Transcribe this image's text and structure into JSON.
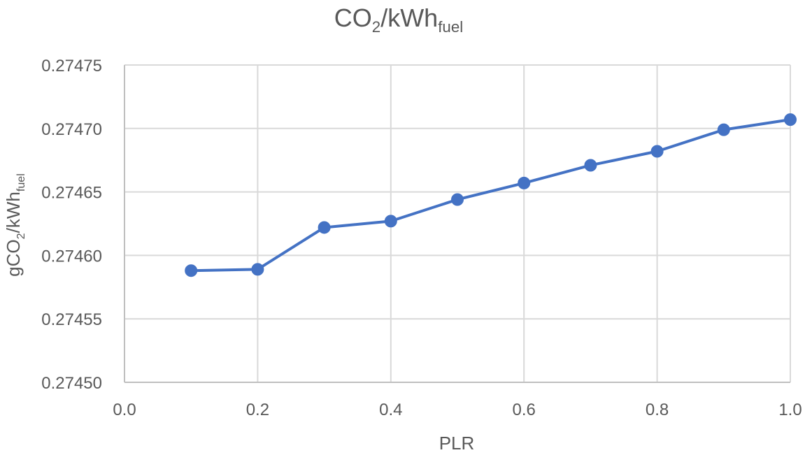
{
  "chart_data": {
    "type": "line",
    "title": {
      "main": "CO",
      "sub1": "2",
      "mid": "/kWh",
      "sub2": "fuel"
    },
    "xlabel": "PLR",
    "ylabel": {
      "pre": "gCO",
      "sub1": "2",
      "mid": "/kWh",
      "sub2": "fuel"
    },
    "xlim": [
      0.0,
      1.0
    ],
    "ylim": [
      0.2745,
      0.27475
    ],
    "x_ticks": [
      "0.0",
      "0.2",
      "0.4",
      "0.6",
      "0.8",
      "1.0"
    ],
    "y_ticks": [
      "0.27475",
      "0.27470",
      "0.27465",
      "0.27460",
      "0.27455",
      "0.27450"
    ],
    "grid": true,
    "series": [
      {
        "color": "#4472C4",
        "x": [
          0.1,
          0.2,
          0.3,
          0.4,
          0.5,
          0.6,
          0.7,
          0.8,
          0.9,
          1.0
        ],
        "y": [
          0.274588,
          0.274589,
          0.274622,
          0.274627,
          0.274644,
          0.274657,
          0.274671,
          0.274682,
          0.274699,
          0.274707
        ]
      }
    ]
  }
}
